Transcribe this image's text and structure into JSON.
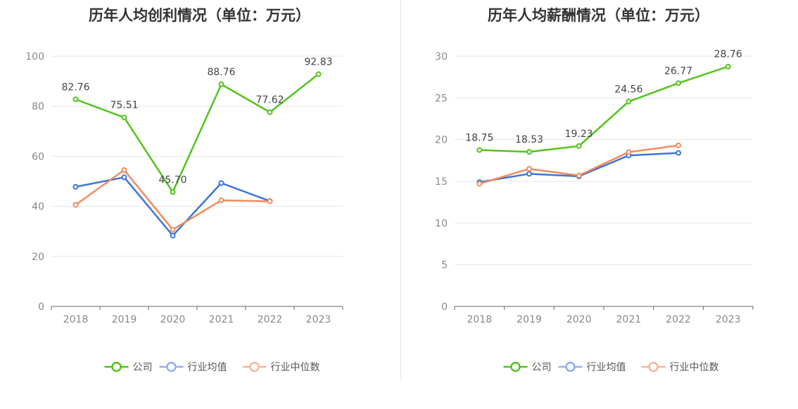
{
  "chart_data": [
    {
      "type": "line",
      "title": "历年人均创利情况（单位：万元）",
      "categories": [
        "2018",
        "2019",
        "2020",
        "2021",
        "2022",
        "2023"
      ],
      "ylim": [
        0,
        100
      ],
      "yticks": [
        0,
        20,
        40,
        60,
        80,
        100
      ],
      "grid": true,
      "legend_position": "bottom",
      "series": [
        {
          "name": "公司",
          "color": "#52c41a",
          "values": [
            82.76,
            75.51,
            45.7,
            88.76,
            77.62,
            92.83
          ],
          "labels": [
            "82.76",
            "75.51",
            "45.70",
            "88.76",
            "77.62",
            "92.83"
          ]
        },
        {
          "name": "行业均值",
          "color": "#3b73d9",
          "values": [
            47.8,
            51.6,
            28.3,
            49.3,
            42.1,
            null
          ]
        },
        {
          "name": "行业中位数",
          "color": "#f08a5d",
          "values": [
            40.6,
            54.5,
            30.7,
            42.4,
            42.0,
            null
          ]
        }
      ]
    },
    {
      "type": "line",
      "title": "历年人均薪酬情况（单位：万元）",
      "categories": [
        "2018",
        "2019",
        "2020",
        "2021",
        "2022",
        "2023"
      ],
      "ylim": [
        0,
        30
      ],
      "yticks": [
        0,
        5,
        10,
        15,
        20,
        25,
        30
      ],
      "grid": true,
      "legend_position": "bottom",
      "series": [
        {
          "name": "公司",
          "color": "#52c41a",
          "values": [
            18.75,
            18.53,
            19.23,
            24.56,
            26.77,
            28.76
          ],
          "labels": [
            "18.75",
            "18.53",
            "19.23",
            "24.56",
            "26.77",
            "28.76"
          ]
        },
        {
          "name": "行业均值",
          "color": "#3b73d9",
          "values": [
            14.9,
            15.9,
            15.6,
            18.1,
            18.4,
            null
          ]
        },
        {
          "name": "行业中位数",
          "color": "#f08a5d",
          "values": [
            14.7,
            16.5,
            15.7,
            18.5,
            19.3,
            null
          ]
        }
      ]
    }
  ],
  "legend": {
    "company": "公司",
    "industry_avg": "行业均值",
    "industry_median": "行业中位数",
    "company_color": "#52c41a",
    "industry_avg_color": "#8fb0ee",
    "industry_median_color": "#f7b49c"
  }
}
